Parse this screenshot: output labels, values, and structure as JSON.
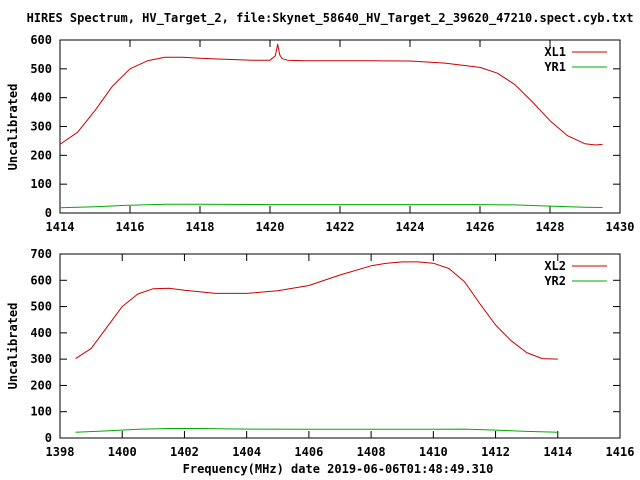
{
  "page_title": "HIRES Spectrum, HV_Target_2, file:Skynet_58640_HV_Target_2_39620_47210.spect.cyb.txt",
  "footer_label": "Frequency(MHz) date 2019-06-06T01:48:49.310",
  "colors": {
    "xl": "#cc0000",
    "yr": "#00aa00",
    "frame": "#000000"
  },
  "chart_data": [
    {
      "type": "line",
      "ylabel": "Uncalibrated",
      "xlim": [
        1414,
        1430
      ],
      "ylim": [
        0,
        600
      ],
      "x_ticks": [
        1414,
        1416,
        1418,
        1420,
        1422,
        1424,
        1426,
        1428,
        1430
      ],
      "y_ticks": [
        0,
        100,
        200,
        300,
        400,
        500,
        600
      ],
      "grid": false,
      "legend_position": "top-right",
      "series": [
        {
          "name": "XL1",
          "color": "#cc0000",
          "x": [
            1414.0,
            1414.5,
            1415.0,
            1415.5,
            1416.0,
            1416.5,
            1417.0,
            1417.5,
            1418.0,
            1418.5,
            1419.0,
            1419.5,
            1420.0,
            1420.15,
            1420.22,
            1420.28,
            1420.35,
            1420.5,
            1421.0,
            1422.0,
            1423.0,
            1424.0,
            1425.0,
            1426.0,
            1426.5,
            1427.0,
            1427.5,
            1428.0,
            1428.5,
            1429.0,
            1429.3,
            1429.5
          ],
          "y": [
            238,
            280,
            355,
            440,
            500,
            528,
            540,
            540,
            537,
            534,
            532,
            530,
            530,
            545,
            585,
            548,
            535,
            530,
            528,
            528,
            528,
            527,
            520,
            505,
            485,
            445,
            385,
            320,
            268,
            240,
            236,
            238
          ]
        },
        {
          "name": "YR1",
          "color": "#00aa00",
          "x": [
            1414.0,
            1415.0,
            1416.0,
            1417.0,
            1418.0,
            1420.0,
            1422.0,
            1424.0,
            1426.0,
            1427.0,
            1428.0,
            1429.0,
            1429.5
          ],
          "y": [
            18,
            22,
            27,
            30,
            30,
            29,
            29,
            29,
            29,
            28,
            24,
            20,
            19
          ]
        }
      ]
    },
    {
      "type": "line",
      "ylabel": "Uncalibrated",
      "xlim": [
        1398,
        1416
      ],
      "ylim": [
        0,
        700
      ],
      "x_ticks": [
        1398,
        1400,
        1402,
        1404,
        1406,
        1408,
        1410,
        1412,
        1414,
        1416
      ],
      "y_ticks": [
        0,
        100,
        200,
        300,
        400,
        500,
        600,
        700
      ],
      "grid": false,
      "legend_position": "top-right",
      "series": [
        {
          "name": "XL2",
          "color": "#cc0000",
          "x": [
            1398.5,
            1399.0,
            1399.5,
            1400.0,
            1400.5,
            1401.0,
            1401.5,
            1402.0,
            1403.0,
            1404.0,
            1405.0,
            1406.0,
            1407.0,
            1408.0,
            1408.5,
            1409.0,
            1409.5,
            1410.0,
            1410.5,
            1411.0,
            1411.5,
            1412.0,
            1412.5,
            1413.0,
            1413.5,
            1414.0
          ],
          "y": [
            302,
            340,
            420,
            500,
            548,
            568,
            570,
            562,
            550,
            550,
            560,
            580,
            620,
            655,
            665,
            670,
            670,
            665,
            645,
            595,
            510,
            430,
            370,
            325,
            302,
            300
          ]
        },
        {
          "name": "YR2",
          "color": "#00aa00",
          "x": [
            1398.5,
            1399.5,
            1400.5,
            1401.5,
            1402.5,
            1404.0,
            1406.0,
            1408.0,
            1410.0,
            1411.0,
            1412.0,
            1413.0,
            1414.0
          ],
          "y": [
            22,
            27,
            33,
            36,
            36,
            34,
            33,
            33,
            33,
            34,
            30,
            25,
            22
          ]
        }
      ]
    }
  ]
}
